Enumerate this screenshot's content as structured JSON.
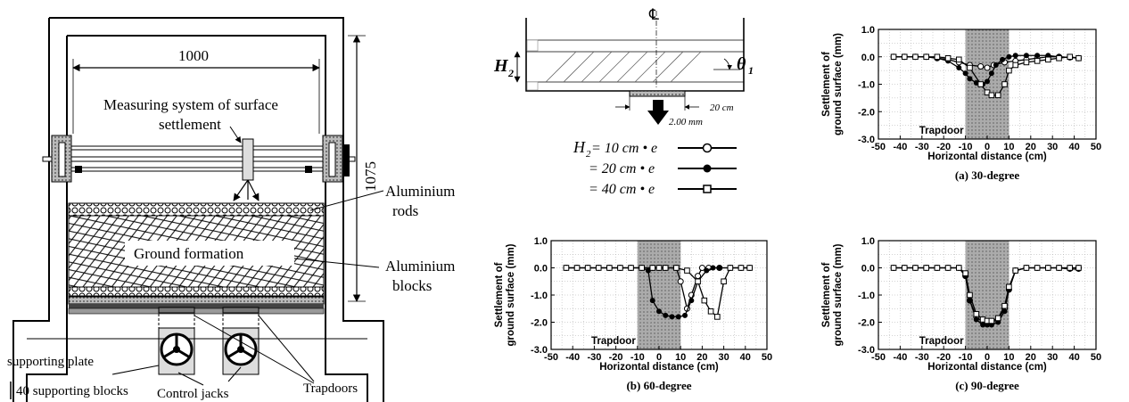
{
  "apparatus": {
    "width_label": "1000",
    "height_label": "1075",
    "measuring_label_line1": "Measuring system of surface",
    "measuring_label_line2": "settlement",
    "rods_label_line1": "Aluminium",
    "rods_label_line2": "rods",
    "ground_label": "Ground formation",
    "blocks_label_line1": "Aluminium",
    "blocks_label_line2": "blocks",
    "supporting_plate_label": "supporting plate",
    "supporting_blocks_label": "40 supporting blocks",
    "control_jacks_label": "Control jacks",
    "trapdoors_label": "Trapdoors"
  },
  "schematic": {
    "centerline_symbol": "℄",
    "h2_symbol": "H",
    "h2_sub": "2",
    "theta_symbol": "θ",
    "theta_sub": "1",
    "dim_20": "20 cm",
    "dim_200": "2.00  mm"
  },
  "legend": [
    {
      "label_prefix": "H",
      "label_sub": "2",
      "label_rest": " = 10 cm • e",
      "marker": "open-circle"
    },
    {
      "label_prefix": "",
      "label_sub": "",
      "label_rest": "= 20 cm • e",
      "marker": "filled-circle"
    },
    {
      "label_prefix": "",
      "label_sub": "",
      "label_rest": "= 40 cm • e",
      "marker": "open-square"
    }
  ],
  "chart_data": [
    {
      "type": "line",
      "caption": "(a) 30-degree",
      "xlabel": "Horizontal distance (cm)",
      "ylabel_line1": "Settlement of",
      "ylabel_line2": "ground surface (mm)",
      "xlim": [
        -50,
        50
      ],
      "ylim": [
        -3.0,
        1.0
      ],
      "xticks": [
        "-50",
        "-40",
        "-30",
        "-20",
        "-10",
        "0",
        "10",
        "20",
        "30",
        "40",
        "50"
      ],
      "yticks": [
        "1.0",
        "0.0",
        "-1.0",
        "-2.0",
        "-3.0"
      ],
      "grid": true,
      "shaded_region": [
        -10,
        10
      ],
      "annotation": "Trapdoor",
      "series": [
        {
          "marker": "open-circle",
          "x": [
            -43,
            -38,
            -33,
            -28,
            -23,
            -18,
            -13,
            -8,
            -3,
            0,
            3,
            8,
            13,
            18,
            23,
            28,
            33,
            38,
            42
          ],
          "y": [
            0,
            0,
            0,
            0,
            -0.05,
            -0.1,
            -0.2,
            -0.3,
            -0.35,
            -0.4,
            -0.3,
            -0.2,
            -0.15,
            -0.1,
            -0.05,
            0,
            0,
            -0.02,
            -0.05
          ]
        },
        {
          "marker": "filled-circle",
          "x": [
            -43,
            -38,
            -33,
            -28,
            -23,
            -18,
            -13,
            -10,
            -8,
            -5,
            -2,
            0,
            2,
            4,
            7,
            10,
            13,
            18,
            23,
            28,
            33,
            38,
            42
          ],
          "y": [
            0,
            0,
            0,
            0,
            -0.05,
            -0.15,
            -0.4,
            -0.6,
            -0.8,
            -0.95,
            -1.0,
            -0.9,
            -0.6,
            -0.3,
            -0.1,
            0,
            0.05,
            0.05,
            0.05,
            0.05,
            0,
            -0.02,
            -0.05
          ]
        },
        {
          "marker": "open-square",
          "x": [
            -43,
            -38,
            -33,
            -28,
            -23,
            -18,
            -13,
            -8,
            -3,
            0,
            2,
            5,
            8,
            10,
            13,
            18,
            23,
            28,
            33,
            38,
            42
          ],
          "y": [
            0,
            0,
            0,
            0,
            0,
            -0.05,
            -0.1,
            -0.4,
            -1.0,
            -1.3,
            -1.4,
            -1.4,
            -1.0,
            -0.5,
            -0.3,
            -0.2,
            -0.15,
            -0.1,
            -0.05,
            0,
            -0.05
          ]
        }
      ]
    },
    {
      "type": "line",
      "caption": "(b) 60-degree",
      "xlabel": "Horizontal distance (cm)",
      "ylabel_line1": "Settlement of",
      "ylabel_line2": "ground surface (mm)",
      "xlim": [
        -50,
        50
      ],
      "ylim": [
        -3.0,
        1.0
      ],
      "xticks": [
        "-50",
        "-40",
        "-30",
        "-20",
        "-10",
        "0",
        "10",
        "20",
        "30",
        "40",
        "50"
      ],
      "yticks": [
        "1.0",
        "0.0",
        "-1.0",
        "-2.0",
        "-3.0"
      ],
      "grid": true,
      "shaded_region": [
        -10,
        10
      ],
      "annotation": "Trapdoor",
      "series": [
        {
          "marker": "open-circle",
          "x": [
            -43,
            -38,
            -33,
            -28,
            -23,
            -18,
            -13,
            -8,
            -3,
            0,
            3,
            8,
            10,
            13,
            15,
            18,
            20,
            23,
            28,
            33,
            38,
            42
          ],
          "y": [
            0,
            0,
            0,
            0,
            0,
            0,
            0,
            0,
            0,
            0,
            0,
            0,
            -0.5,
            -1.5,
            -1.0,
            -0.3,
            0,
            0,
            0,
            0,
            0,
            0
          ]
        },
        {
          "marker": "filled-circle",
          "x": [
            -43,
            -38,
            -33,
            -28,
            -23,
            -18,
            -13,
            -8,
            -5,
            -3,
            0,
            3,
            6,
            9,
            12,
            15,
            18,
            22,
            25,
            28,
            33,
            38,
            42
          ],
          "y": [
            0,
            0,
            0,
            0,
            0,
            0,
            0,
            0,
            -0.1,
            -1.2,
            -1.6,
            -1.75,
            -1.8,
            -1.8,
            -1.75,
            -1.2,
            -0.5,
            -0.1,
            0,
            0,
            0,
            0,
            0
          ]
        },
        {
          "marker": "open-square",
          "x": [
            -43,
            -38,
            -33,
            -28,
            -23,
            -18,
            -13,
            -8,
            -3,
            0,
            3,
            8,
            13,
            18,
            21,
            24,
            27,
            30,
            33,
            38,
            42
          ],
          "y": [
            0,
            0,
            0,
            0,
            0,
            0,
            0,
            0,
            0,
            0,
            0,
            0,
            -0.1,
            -0.5,
            -1.2,
            -1.6,
            -1.8,
            -0.5,
            0,
            0,
            0
          ]
        }
      ]
    },
    {
      "type": "line",
      "caption": "(c) 90-degree",
      "xlabel": "Horizontal distance (cm)",
      "ylabel_line1": "Settlement of",
      "ylabel_line2": "ground surface (mm)",
      "xlim": [
        -50,
        50
      ],
      "ylim": [
        -3.0,
        1.0
      ],
      "xticks": [
        "-50",
        "-40",
        "-30",
        "-20",
        "-10",
        "0",
        "10",
        "20",
        "30",
        "40",
        "50"
      ],
      "yticks": [
        "1.0",
        "0.0",
        "-1.0",
        "-2.0",
        "-3.0"
      ],
      "grid": true,
      "shaded_region": [
        -10,
        10
      ],
      "annotation": "Trapdoor",
      "series": [
        {
          "marker": "open-circle",
          "x": [
            -43,
            -38,
            -33,
            -28,
            -23,
            -18,
            -13,
            -10,
            -8,
            -5,
            -2,
            0,
            2,
            5,
            8,
            10,
            13,
            18,
            23,
            28,
            33,
            38,
            42
          ],
          "y": [
            0,
            0,
            0,
            0,
            0,
            0,
            0,
            -0.3,
            -1.2,
            -1.8,
            -2.0,
            -2.0,
            -2.0,
            -1.9,
            -1.5,
            -0.8,
            -0.1,
            0,
            0,
            0,
            0,
            0,
            0
          ]
        },
        {
          "marker": "filled-circle",
          "x": [
            -43,
            -38,
            -33,
            -28,
            -23,
            -18,
            -13,
            -10,
            -8,
            -5,
            -2,
            0,
            2,
            5,
            8,
            10,
            13,
            18,
            23,
            28,
            33,
            38,
            42
          ],
          "y": [
            0,
            0,
            0,
            0,
            0,
            0,
            0,
            -0.3,
            -1.2,
            -1.9,
            -2.1,
            -2.1,
            -2.1,
            -2.0,
            -1.6,
            -0.8,
            -0.1,
            0,
            0,
            0,
            0,
            -0.05,
            -0.05
          ]
        },
        {
          "marker": "open-square",
          "x": [
            -43,
            -38,
            -33,
            -28,
            -23,
            -18,
            -13,
            -10,
            -8,
            -5,
            -2,
            0,
            2,
            5,
            8,
            10,
            13,
            18,
            23,
            28,
            33,
            38,
            42
          ],
          "y": [
            0,
            0,
            0,
            0,
            0,
            0,
            0,
            -0.2,
            -1.0,
            -1.7,
            -1.9,
            -1.95,
            -1.95,
            -1.85,
            -1.4,
            -0.7,
            -0.1,
            0,
            0,
            0,
            0,
            0,
            0
          ]
        }
      ]
    }
  ]
}
